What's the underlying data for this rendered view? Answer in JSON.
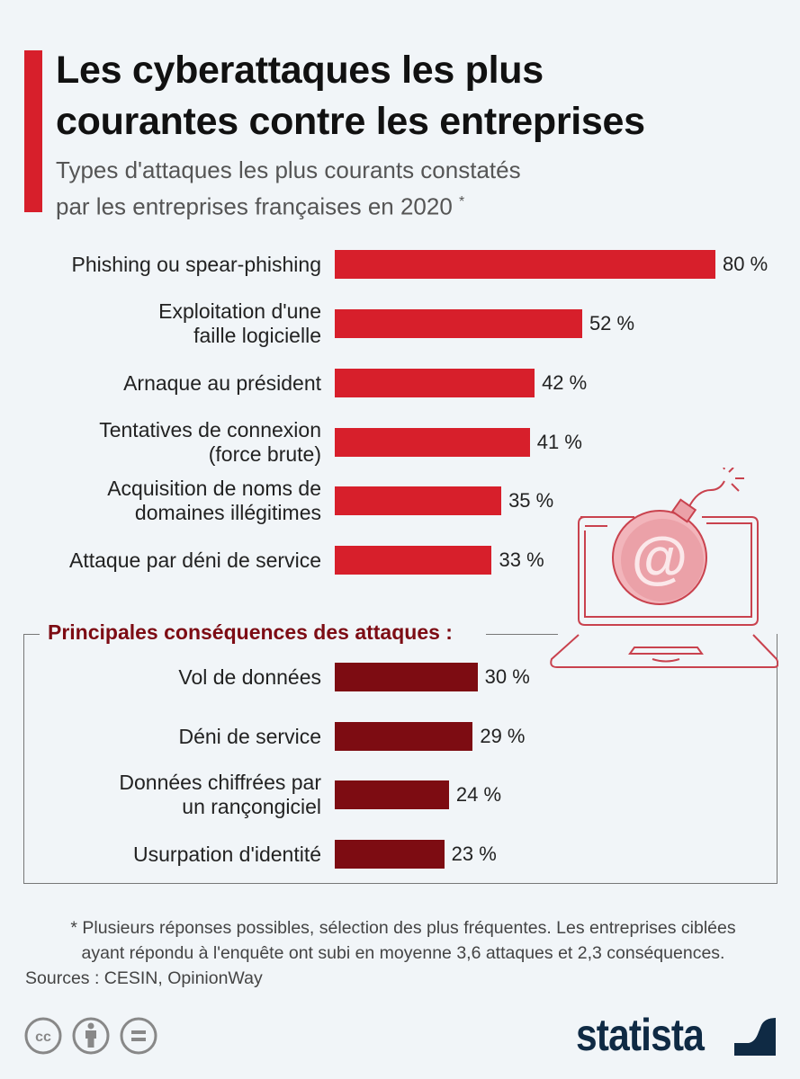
{
  "title": [
    "Les cyberattaques les plus",
    "courantes contre les entreprises"
  ],
  "subtitle": [
    "Types d'attaques les plus courants constatés",
    "par les entreprises françaises en 2020"
  ],
  "subtitle_mark": "*",
  "chart_data": [
    {
      "type": "bar",
      "orientation": "horizontal",
      "color": "#d71f2b",
      "categories": [
        "Phishing ou spear-phishing",
        "Exploitation d'une faille logicielle",
        "Arnaque au président",
        "Tentatives de connexion (force brute)",
        "Acquisition de noms de domaines illégitimes",
        "Attaque par déni de service"
      ],
      "category_lines": [
        [
          "Phishing ou spear-phishing"
        ],
        [
          "Exploitation d'une",
          "faille logicielle"
        ],
        [
          "Arnaque au président"
        ],
        [
          "Tentatives de connexion",
          "(force brute)"
        ],
        [
          "Acquisition de noms de",
          "domaines illégitimes"
        ],
        [
          "Attaque par déni de service"
        ]
      ],
      "values": [
        80,
        52,
        42,
        41,
        35,
        33
      ],
      "value_labels": [
        "80 %",
        "52 %",
        "42 %",
        "41 %",
        "35 %",
        "33 %"
      ],
      "unit": "%"
    },
    {
      "type": "bar",
      "orientation": "horizontal",
      "title": "Principales conséquences des attaques :",
      "color": "#7d0c12",
      "categories": [
        "Vol de données",
        "Déni de service",
        "Données chiffrées par un rançongiciel",
        "Usurpation d'identité"
      ],
      "category_lines": [
        [
          "Vol de données"
        ],
        [
          "Déni de service"
        ],
        [
          "Données chiffrées par",
          "un rançongiciel"
        ],
        [
          "Usurpation d'identité"
        ]
      ],
      "values": [
        30,
        29,
        24,
        23
      ],
      "value_labels": [
        "30 %",
        "29 %",
        "24 %",
        "23 %"
      ],
      "unit": "%"
    }
  ],
  "footnote": [
    "* Plusieurs réponses possibles, sélection des plus fréquentes. Les entreprises ciblées",
    "ayant répondu à l'enquête ont subi en moyenne 3,6 attaques et 2,3 conséquences."
  ],
  "sources": "Sources : CESIN, OpinionWay",
  "license_icons": [
    "cc-icon",
    "attribution-icon",
    "no-derivatives-icon"
  ],
  "logo": "statista",
  "illustration": "laptop-email-bomb-icon"
}
